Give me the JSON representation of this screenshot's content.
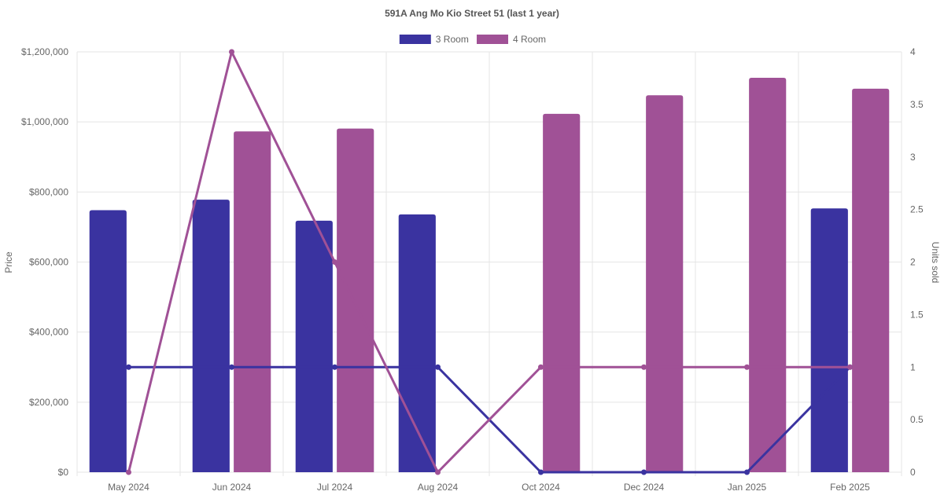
{
  "chart_data": {
    "type": "bar",
    "title": "591A Ang Mo Kio Street 51 (last 1 year)",
    "categories": [
      "May 2024",
      "Jun 2024",
      "Jul 2024",
      "Aug 2024",
      "Oct 2024",
      "Dec 2024",
      "Jan 2025",
      "Feb 2025"
    ],
    "ylabel": "Price",
    "y2label": "Units sold",
    "ylim": [
      0,
      1200000
    ],
    "y2lim": [
      0,
      4
    ],
    "y_ticks": [
      "$0",
      "$200,000",
      "$400,000",
      "$600,000",
      "$800,000",
      "$1,000,000",
      "$1,200,000"
    ],
    "y2_ticks": [
      "0",
      "0.5",
      "1",
      "1.5",
      "2",
      "2.5",
      "3",
      "3.5",
      "4"
    ],
    "y_tick_values": [
      0,
      200000,
      400000,
      600000,
      800000,
      1000000,
      1200000
    ],
    "y2_tick_values": [
      0,
      0.5,
      1,
      1.5,
      2,
      2.5,
      3,
      3.5,
      4
    ],
    "grid": true,
    "legend_position": "top",
    "series": [
      {
        "name": "3 Room",
        "kind": "bar",
        "axis": "price",
        "color": "#3a33a0",
        "values": [
          748000,
          778000,
          718000,
          736000,
          null,
          null,
          null,
          753000
        ]
      },
      {
        "name": "4 Room",
        "kind": "bar",
        "axis": "price",
        "color": "#a05196",
        "values": [
          null,
          973000,
          981000,
          null,
          1023000,
          1076000,
          1126000,
          1095000
        ]
      },
      {
        "legend_ref": "3 Room",
        "kind": "line",
        "axis": "units",
        "color": "#3a33a0",
        "values": [
          1,
          1,
          1,
          1,
          0,
          0,
          0,
          1
        ]
      },
      {
        "legend_ref": "4 Room",
        "kind": "line",
        "axis": "units",
        "color": "#a05196",
        "values": [
          0,
          4,
          2,
          0,
          1,
          1,
          1,
          1
        ]
      }
    ]
  }
}
